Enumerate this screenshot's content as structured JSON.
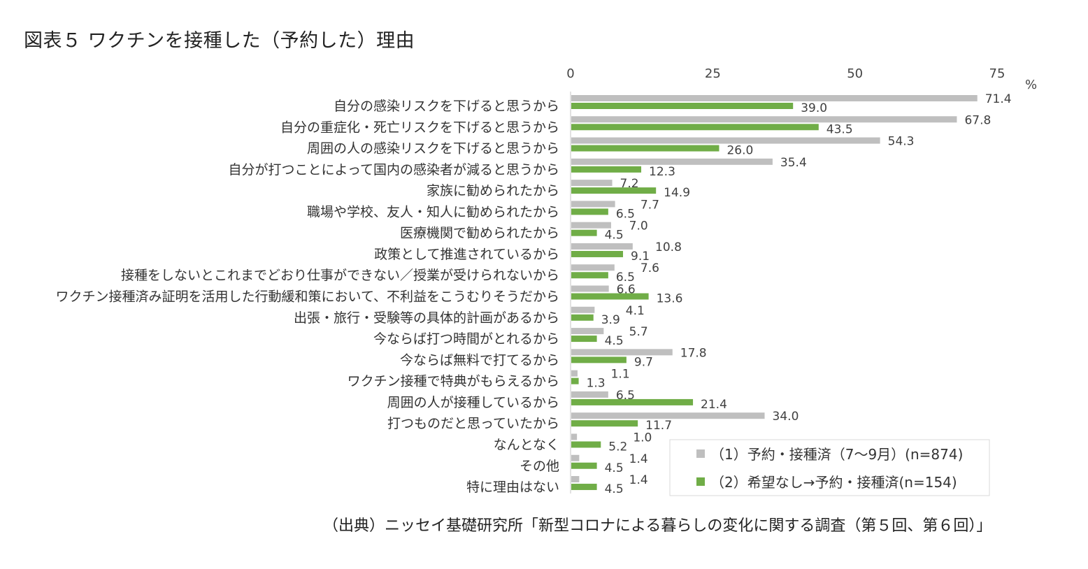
{
  "title": "図表５ ワクチンを接種した（予約した）理由",
  "source": "（出典）ニッセイ基礎研究所「新型コロナによる暮らしの変化に関する調査（第５回、第６回）」",
  "chart_data": {
    "type": "bar",
    "orientation": "horizontal",
    "title": "図表５ ワクチンを接種した（予約した）理由",
    "unit": "%",
    "xlim": [
      0,
      75
    ],
    "xticks": [
      "0",
      "25",
      "50",
      "75"
    ],
    "legend_position": "bottom-right",
    "categories": [
      "自分の感染リスクを下げると思うから",
      "自分の重症化・死亡リスクを下げると思うから",
      "周囲の人の感染リスクを下げると思うから",
      "自分が打つことによって国内の感染者が減ると思うから",
      "家族に勧められたから",
      "職場や学校、友人・知人に勧められたから",
      "医療機関で勧められたから",
      "政策として推進されているから",
      "接種をしないとこれまでどおり仕事ができない／授業が受けられないから",
      "ワクチン接種済み証明を活用した行動緩和策において、不利益をこうむりそうだから",
      "出張・旅行・受験等の具体的計画があるから",
      "今ならば打つ時間がとれるから",
      "今ならば無料で打てるから",
      "ワクチン接種で特典がもらえるから",
      "周囲の人が接種しているから",
      "打つものだと思っていたから",
      "なんとなく",
      "その他",
      "特に理由はない"
    ],
    "series": [
      {
        "name": "（1）予約・接種済（7～9月）(n=874)",
        "color": "#bfbfbf",
        "values": [
          71.4,
          67.8,
          54.3,
          35.4,
          7.2,
          7.7,
          7.0,
          10.8,
          7.6,
          6.6,
          4.1,
          5.7,
          17.8,
          1.1,
          6.5,
          34.0,
          1.0,
          1.4,
          1.4
        ]
      },
      {
        "name": "（2）希望なし→予約・接種済(n=154)",
        "color": "#70ad47",
        "values": [
          39.0,
          43.5,
          26.0,
          12.3,
          14.9,
          6.5,
          4.5,
          9.1,
          6.5,
          13.6,
          3.9,
          4.5,
          9.7,
          1.3,
          21.4,
          11.7,
          5.2,
          4.5,
          4.5
        ]
      }
    ]
  }
}
